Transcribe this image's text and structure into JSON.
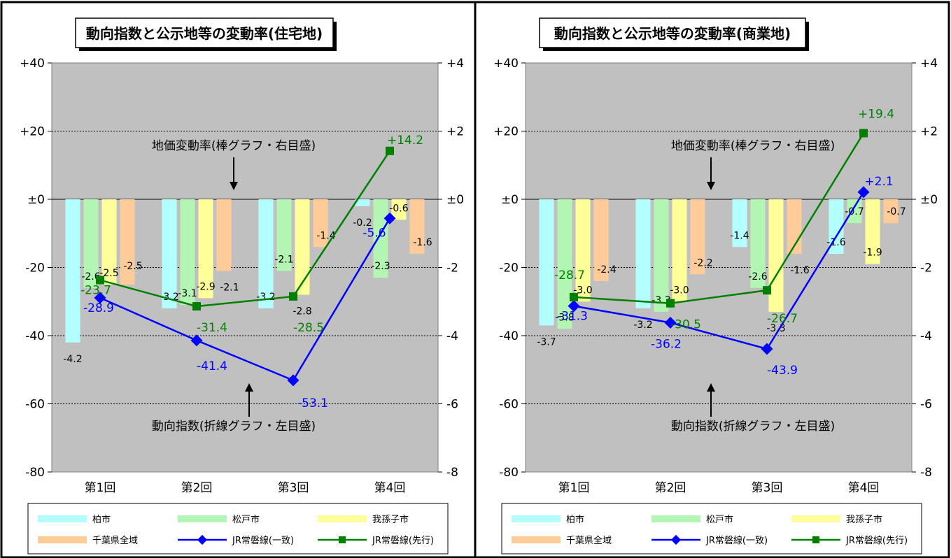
{
  "chart_data": [
    {
      "type": "bar",
      "title": "動向指数と公示地等の変動率(住宅地)",
      "categories": [
        "第1回",
        "第2回",
        "第3回",
        "第4回"
      ],
      "left_axis": {
        "ylim": [
          -80,
          40
        ],
        "ticks": [
          "+40",
          "+20",
          "±0",
          "-20",
          "-40",
          "-60",
          "-80"
        ]
      },
      "right_axis": {
        "ylim": [
          -8,
          4
        ],
        "ticks": [
          "+4",
          "+2",
          "±0",
          "-2",
          "-4",
          "-6",
          "-8"
        ]
      },
      "bar_series": [
        {
          "name": "柏市",
          "color": "#b3ffff",
          "values": [
            -4.2,
            -3.2,
            -3.2,
            -0.2
          ],
          "labels": [
            "-4.2",
            "-3.2",
            "-3.2",
            "-0.2"
          ]
        },
        {
          "name": "松戸市",
          "color": "#b3f5b3",
          "values": [
            -2.6,
            -3.1,
            -2.1,
            -2.3
          ],
          "labels": [
            "-2.6",
            "-3.1",
            "-2.1",
            "-2.3"
          ]
        },
        {
          "name": "我孫子市",
          "color": "#ffff99",
          "values": [
            -2.5,
            -2.9,
            -2.8,
            -0.6
          ],
          "labels": [
            "-2.5",
            "-2.9",
            "-2.8",
            "-0.6"
          ]
        },
        {
          "name": "千葉県全域",
          "color": "#ffcc99",
          "values": [
            -2.5,
            -2.1,
            -1.4,
            -1.6
          ],
          "labels": [
            "-2.5",
            "-2.1",
            "-1.4",
            "-1.6"
          ]
        }
      ],
      "line_series": [
        {
          "name": "JR常磐線(一致)",
          "color": "#0000ff",
          "values": [
            -28.9,
            -41.4,
            -53.1,
            -5.6
          ],
          "labels": [
            "-28.9",
            "-41.4",
            "-53.1",
            "-5.6"
          ]
        },
        {
          "name": "JR常磐線(先行)",
          "color": "#008000",
          "values": [
            -23.7,
            -31.4,
            -28.5,
            14.2
          ],
          "labels": [
            "-23.7",
            "-31.4",
            "-28.5",
            "+14.2"
          ]
        }
      ],
      "annotations": [
        "地価変動率(棒グラフ・右目盛)",
        "動向指数(折線グラフ・左目盛)"
      ],
      "grid": true,
      "legend": "bottom"
    },
    {
      "type": "bar",
      "title": "動向指数と公示地等の変動率(商業地)",
      "categories": [
        "第1回",
        "第2回",
        "第3回",
        "第4回"
      ],
      "left_axis": {
        "ylim": [
          -80,
          40
        ],
        "ticks": [
          "+40",
          "+20",
          "±0",
          "-20",
          "-40",
          "-60",
          "-80"
        ]
      },
      "right_axis": {
        "ylim": [
          -8,
          4
        ],
        "ticks": [
          "+4",
          "+2",
          "±0",
          "-2",
          "-4",
          "-6",
          "-8"
        ]
      },
      "bar_series": [
        {
          "name": "柏市",
          "color": "#b3ffff",
          "values": [
            -3.7,
            -3.2,
            -1.4,
            -1.6
          ],
          "labels": [
            "-3.7",
            "-3.2",
            "-1.4",
            "-1.6"
          ]
        },
        {
          "name": "松戸市",
          "color": "#b3f5b3",
          "values": [
            -3.8,
            -3.3,
            -2.6,
            -0.7
          ],
          "labels": [
            "-3.8",
            "-3.3",
            "-2.6",
            "-0.7"
          ]
        },
        {
          "name": "我孫子市",
          "color": "#ffff99",
          "values": [
            -3.0,
            -3.0,
            -3.3,
            -1.9
          ],
          "labels": [
            "-3.0",
            "-3.0",
            "-3.3",
            "-1.9"
          ]
        },
        {
          "name": "千葉県全域",
          "color": "#ffcc99",
          "values": [
            -2.4,
            -2.2,
            -1.6,
            -0.7
          ],
          "labels": [
            "-2.4",
            "-2.2",
            "-1.6",
            "-0.7"
          ]
        }
      ],
      "line_series": [
        {
          "name": "JR常磐線(一致)",
          "color": "#0000ff",
          "values": [
            -31.3,
            -36.2,
            -43.9,
            2.1
          ],
          "labels": [
            "-31.3",
            "-36.2",
            "-43.9",
            "+2.1"
          ]
        },
        {
          "name": "JR常磐線(先行)",
          "color": "#008000",
          "values": [
            -28.7,
            -30.5,
            -26.7,
            19.4
          ],
          "labels": [
            "-28.7",
            "-30.5",
            "-26.7",
            "+19.4"
          ]
        }
      ],
      "annotations": [
        "地価変動率(棒グラフ・右目盛)",
        "動向指数(折線グラフ・左目盛)"
      ],
      "grid": true,
      "legend": "bottom"
    }
  ]
}
